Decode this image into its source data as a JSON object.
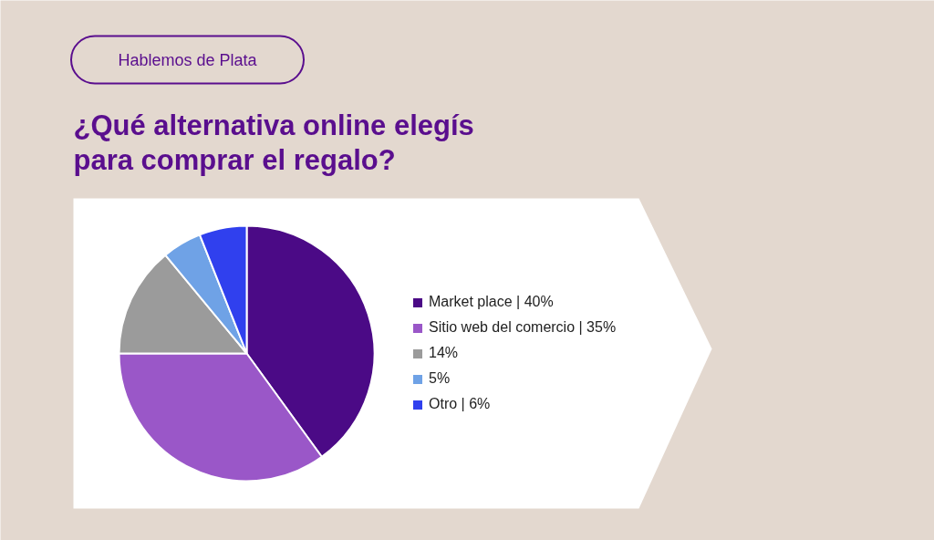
{
  "chart_data": {
    "type": "pie",
    "subtitle": "Hablemos de Plata",
    "title": "¿Qué alternativa online elegís\npara comprar el regalo?",
    "categories": [
      "Market place | 40%",
      "Sitio web del comercio | 35%",
      "14%",
      "5%",
      "Otro | 6%"
    ],
    "values": [
      40,
      35,
      14,
      5,
      6
    ],
    "colors": [
      "#4b0a86",
      "#9a57c8",
      "#9b9b9b",
      "#6fa2e6",
      "#3040ee"
    ],
    "legend": "right"
  }
}
